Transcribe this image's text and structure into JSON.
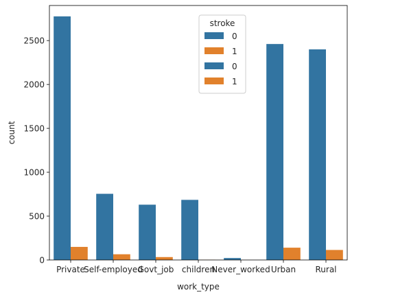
{
  "chart_data": {
    "type": "bar",
    "title": "",
    "xlabel": "work_type",
    "ylabel": "count",
    "ylim": [
      0,
      2900
    ],
    "yticks": [
      0,
      500,
      1000,
      1500,
      2000,
      2500
    ],
    "grid": false,
    "categories": [
      "Private",
      "Self-employed",
      "Govt_job",
      "children",
      "Never_worked",
      "Urban",
      "Rural"
    ],
    "series": [
      {
        "name": "0",
        "color": "#3274a1",
        "values": [
          2776,
          754,
          630,
          685,
          22,
          2461,
          2400
        ]
      },
      {
        "name": "1",
        "color": "#e1812c",
        "values": [
          149,
          65,
          33,
          2,
          0,
          140,
          114
        ]
      }
    ],
    "legend": {
      "title": "stroke",
      "placement": "top-center",
      "entries": [
        {
          "label": "0",
          "color": "#3274a1"
        },
        {
          "label": "1",
          "color": "#e1812c"
        },
        {
          "label": "0",
          "color": "#3274a1"
        },
        {
          "label": "1",
          "color": "#e1812c"
        }
      ]
    }
  }
}
